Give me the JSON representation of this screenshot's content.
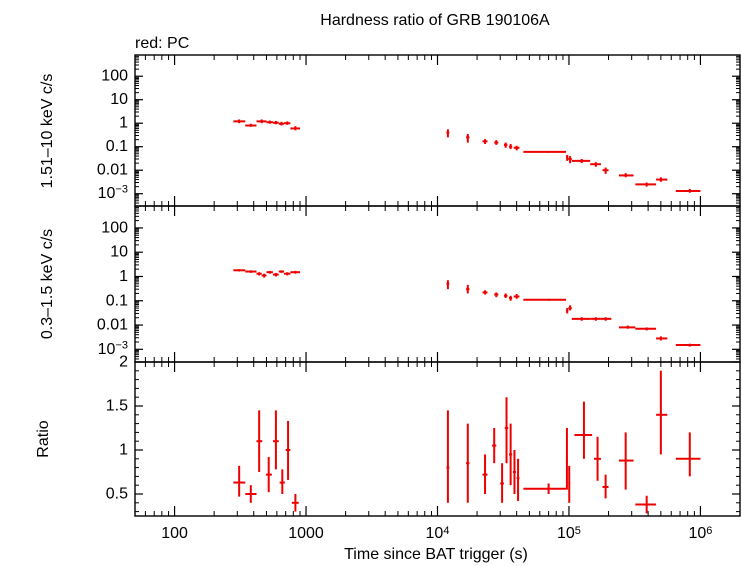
{
  "title": "Hardness ratio of GRB 190106A",
  "subtitle": "red: PC",
  "xlabel": "Time since BAT trigger (s)",
  "colors": {
    "data": "#ee0000",
    "axis": "#000000",
    "background": "#ffffff"
  },
  "chart_data": [
    {
      "type": "scatter",
      "ylabel": "1.51–10 keV c/s",
      "xscale": "log",
      "yscale": "log",
      "xlim": [
        50,
        2000000
      ],
      "ylim": [
        0.0003,
        800
      ],
      "yticks": [
        {
          "v": 100,
          "label": "100"
        },
        {
          "v": 10,
          "label": "10"
        },
        {
          "v": 1,
          "label": "1"
        },
        {
          "v": 0.1,
          "label": "0.1"
        },
        {
          "v": 0.01,
          "label": "0.01"
        },
        {
          "v": 0.001,
          "label": "10",
          "sup": "−3"
        }
      ],
      "series": [
        {
          "points": [
            {
              "x": 310,
              "xlo": 280,
              "xhi": 345,
              "y": 1.2,
              "ylo": 1.0,
              "yhi": 1.45
            },
            {
              "x": 380,
              "xlo": 345,
              "xhi": 420,
              "y": 0.8,
              "ylo": 0.7,
              "yhi": 0.95
            },
            {
              "x": 460,
              "xlo": 420,
              "xhi": 500,
              "y": 1.2,
              "ylo": 1.0,
              "yhi": 1.45
            },
            {
              "x": 530,
              "xlo": 500,
              "xhi": 560,
              "y": 1.1,
              "ylo": 0.95,
              "yhi": 1.3
            },
            {
              "x": 590,
              "xlo": 560,
              "xhi": 620,
              "y": 1.05,
              "ylo": 0.9,
              "yhi": 1.25
            },
            {
              "x": 650,
              "xlo": 620,
              "xhi": 680,
              "y": 0.95,
              "ylo": 0.8,
              "yhi": 1.15
            },
            {
              "x": 720,
              "xlo": 680,
              "xhi": 760,
              "y": 1.0,
              "ylo": 0.85,
              "yhi": 1.2
            },
            {
              "x": 830,
              "xlo": 760,
              "xhi": 900,
              "y": 0.6,
              "ylo": 0.5,
              "yhi": 0.75
            },
            {
              "x": 12000,
              "xlo": 11700,
              "xhi": 12300,
              "y": 0.4,
              "ylo": 0.25,
              "yhi": 0.55
            },
            {
              "x": 17000,
              "xlo": 16500,
              "xhi": 17500,
              "y": 0.25,
              "ylo": 0.15,
              "yhi": 0.35
            },
            {
              "x": 23000,
              "xlo": 22000,
              "xhi": 24000,
              "y": 0.17,
              "ylo": 0.13,
              "yhi": 0.21
            },
            {
              "x": 28000,
              "xlo": 27000,
              "xhi": 29000,
              "y": 0.15,
              "ylo": 0.12,
              "yhi": 0.19
            },
            {
              "x": 33000,
              "xlo": 32000,
              "xhi": 34000,
              "y": 0.12,
              "ylo": 0.09,
              "yhi": 0.15
            },
            {
              "x": 36000,
              "xlo": 35000,
              "xhi": 37000,
              "y": 0.1,
              "ylo": 0.08,
              "yhi": 0.13
            },
            {
              "x": 40000,
              "xlo": 38000,
              "xhi": 42000,
              "y": 0.09,
              "ylo": 0.07,
              "yhi": 0.11
            },
            {
              "x": 70000,
              "xlo": 45000,
              "xhi": 95000,
              "y": 0.06,
              "ylo": 0.055,
              "yhi": 0.065
            },
            {
              "x": 97000,
              "xlo": 95000,
              "xhi": 99000,
              "y": 0.035,
              "ylo": 0.025,
              "yhi": 0.045
            },
            {
              "x": 102000,
              "xlo": 99000,
              "xhi": 105000,
              "y": 0.03,
              "ylo": 0.02,
              "yhi": 0.04
            },
            {
              "x": 125000,
              "xlo": 105000,
              "xhi": 145000,
              "y": 0.025,
              "ylo": 0.02,
              "yhi": 0.03
            },
            {
              "x": 160000,
              "xlo": 145000,
              "xhi": 175000,
              "y": 0.018,
              "ylo": 0.014,
              "yhi": 0.022
            },
            {
              "x": 190000,
              "xlo": 180000,
              "xhi": 200000,
              "y": 0.01,
              "ylo": 0.007,
              "yhi": 0.013
            },
            {
              "x": 270000,
              "xlo": 240000,
              "xhi": 310000,
              "y": 0.006,
              "ylo": 0.005,
              "yhi": 0.0075
            },
            {
              "x": 390000,
              "xlo": 320000,
              "xhi": 460000,
              "y": 0.0025,
              "ylo": 0.002,
              "yhi": 0.003
            },
            {
              "x": 500000,
              "xlo": 460000,
              "xhi": 560000,
              "y": 0.004,
              "ylo": 0.0032,
              "yhi": 0.005
            },
            {
              "x": 830000,
              "xlo": 650000,
              "xhi": 1000000,
              "y": 0.0013,
              "ylo": 0.0011,
              "yhi": 0.0016
            }
          ]
        }
      ]
    },
    {
      "type": "scatter",
      "ylabel": "0.3–1.5 keV c/s",
      "xscale": "log",
      "yscale": "log",
      "xlim": [
        50,
        2000000
      ],
      "ylim": [
        0.0003,
        800
      ],
      "yticks": [
        {
          "v": 100,
          "label": "100"
        },
        {
          "v": 10,
          "label": "10"
        },
        {
          "v": 1,
          "label": "1"
        },
        {
          "v": 0.1,
          "label": "0.1"
        },
        {
          "v": 0.01,
          "label": "0.01"
        },
        {
          "v": 0.001,
          "label": "10",
          "sup": "−3"
        }
      ],
      "series": [
        {
          "points": [
            {
              "x": 310,
              "xlo": 280,
              "xhi": 345,
              "y": 1.8,
              "ylo": 1.6,
              "yhi": 2.0
            },
            {
              "x": 380,
              "xlo": 345,
              "xhi": 420,
              "y": 1.6,
              "ylo": 1.4,
              "yhi": 1.8
            },
            {
              "x": 440,
              "xlo": 420,
              "xhi": 460,
              "y": 1.3,
              "ylo": 1.1,
              "yhi": 1.5
            },
            {
              "x": 480,
              "xlo": 460,
              "xhi": 500,
              "y": 1.1,
              "ylo": 0.9,
              "yhi": 1.3
            },
            {
              "x": 530,
              "xlo": 500,
              "xhi": 560,
              "y": 1.5,
              "ylo": 1.3,
              "yhi": 1.7
            },
            {
              "x": 590,
              "xlo": 560,
              "xhi": 620,
              "y": 1.2,
              "ylo": 1.0,
              "yhi": 1.4
            },
            {
              "x": 650,
              "xlo": 620,
              "xhi": 680,
              "y": 1.6,
              "ylo": 1.4,
              "yhi": 1.8
            },
            {
              "x": 720,
              "xlo": 680,
              "xhi": 760,
              "y": 1.3,
              "ylo": 1.1,
              "yhi": 1.5
            },
            {
              "x": 830,
              "xlo": 760,
              "xhi": 900,
              "y": 1.5,
              "ylo": 1.3,
              "yhi": 1.7
            },
            {
              "x": 12000,
              "xlo": 11700,
              "xhi": 12300,
              "y": 0.5,
              "ylo": 0.3,
              "yhi": 0.7
            },
            {
              "x": 17000,
              "xlo": 16500,
              "xhi": 17500,
              "y": 0.3,
              "ylo": 0.2,
              "yhi": 0.45
            },
            {
              "x": 23000,
              "xlo": 22000,
              "xhi": 24000,
              "y": 0.22,
              "ylo": 0.18,
              "yhi": 0.27
            },
            {
              "x": 28000,
              "xlo": 27000,
              "xhi": 29000,
              "y": 0.18,
              "ylo": 0.14,
              "yhi": 0.22
            },
            {
              "x": 33000,
              "xlo": 32000,
              "xhi": 34000,
              "y": 0.16,
              "ylo": 0.13,
              "yhi": 0.2
            },
            {
              "x": 36000,
              "xlo": 35000,
              "xhi": 37000,
              "y": 0.13,
              "ylo": 0.1,
              "yhi": 0.16
            },
            {
              "x": 40000,
              "xlo": 38000,
              "xhi": 42000,
              "y": 0.15,
              "ylo": 0.12,
              "yhi": 0.19
            },
            {
              "x": 70000,
              "xlo": 45000,
              "xhi": 95000,
              "y": 0.11,
              "ylo": 0.1,
              "yhi": 0.12
            },
            {
              "x": 97000,
              "xlo": 95000,
              "xhi": 99000,
              "y": 0.04,
              "ylo": 0.03,
              "yhi": 0.05
            },
            {
              "x": 102000,
              "xlo": 99000,
              "xhi": 105000,
              "y": 0.05,
              "ylo": 0.04,
              "yhi": 0.065
            },
            {
              "x": 125000,
              "xlo": 105000,
              "xhi": 145000,
              "y": 0.018,
              "ylo": 0.015,
              "yhi": 0.021
            },
            {
              "x": 160000,
              "xlo": 145000,
              "xhi": 175000,
              "y": 0.018,
              "ylo": 0.015,
              "yhi": 0.021
            },
            {
              "x": 190000,
              "xlo": 175000,
              "xhi": 210000,
              "y": 0.018,
              "ylo": 0.015,
              "yhi": 0.021
            },
            {
              "x": 280000,
              "xlo": 240000,
              "xhi": 320000,
              "y": 0.008,
              "ylo": 0.007,
              "yhi": 0.0095
            },
            {
              "x": 390000,
              "xlo": 320000,
              "xhi": 460000,
              "y": 0.007,
              "ylo": 0.006,
              "yhi": 0.008
            },
            {
              "x": 500000,
              "xlo": 460000,
              "xhi": 560000,
              "y": 0.0028,
              "ylo": 0.0023,
              "yhi": 0.0034
            },
            {
              "x": 830000,
              "xlo": 650000,
              "xhi": 1000000,
              "y": 0.0015,
              "ylo": 0.0013,
              "yhi": 0.0017
            }
          ]
        }
      ]
    },
    {
      "type": "scatter",
      "ylabel": "Ratio",
      "xscale": "log",
      "yscale": "linear",
      "xlim": [
        50,
        2000000
      ],
      "ylim": [
        0.25,
        2.0
      ],
      "yticks": [
        {
          "v": 2,
          "label": "2"
        },
        {
          "v": 1.5,
          "label": "1.5"
        },
        {
          "v": 1,
          "label": "1"
        },
        {
          "v": 0.5,
          "label": "0.5"
        }
      ],
      "series": [
        {
          "points": [
            {
              "x": 310,
              "xlo": 280,
              "xhi": 345,
              "y": 0.63,
              "ylo": 0.47,
              "yhi": 0.82
            },
            {
              "x": 380,
              "xlo": 345,
              "xhi": 420,
              "y": 0.5,
              "ylo": 0.4,
              "yhi": 0.6
            },
            {
              "x": 440,
              "xlo": 420,
              "xhi": 465,
              "y": 1.1,
              "ylo": 0.75,
              "yhi": 1.45
            },
            {
              "x": 520,
              "xlo": 495,
              "xhi": 550,
              "y": 0.72,
              "ylo": 0.52,
              "yhi": 0.92
            },
            {
              "x": 590,
              "xlo": 560,
              "xhi": 620,
              "y": 1.1,
              "ylo": 0.78,
              "yhi": 1.45
            },
            {
              "x": 660,
              "xlo": 630,
              "xhi": 690,
              "y": 0.63,
              "ylo": 0.5,
              "yhi": 0.78
            },
            {
              "x": 730,
              "xlo": 700,
              "xhi": 760,
              "y": 1.0,
              "ylo": 0.66,
              "yhi": 1.33
            },
            {
              "x": 830,
              "xlo": 780,
              "xhi": 880,
              "y": 0.4,
              "ylo": 0.3,
              "yhi": 0.5
            },
            {
              "x": 12000,
              "xlo": 11700,
              "xhi": 12300,
              "y": 0.8,
              "ylo": 0.4,
              "yhi": 1.45
            },
            {
              "x": 17000,
              "xlo": 16500,
              "xhi": 17500,
              "y": 0.85,
              "ylo": 0.4,
              "yhi": 1.3
            },
            {
              "x": 23000,
              "xlo": 22000,
              "xhi": 24000,
              "y": 0.72,
              "ylo": 0.5,
              "yhi": 0.95
            },
            {
              "x": 27000,
              "xlo": 26000,
              "xhi": 28000,
              "y": 1.05,
              "ylo": 0.85,
              "yhi": 1.25
            },
            {
              "x": 31000,
              "xlo": 30000,
              "xhi": 32000,
              "y": 0.62,
              "ylo": 0.4,
              "yhi": 0.85
            },
            {
              "x": 33500,
              "xlo": 32500,
              "xhi": 34500,
              "y": 1.25,
              "ylo": 0.85,
              "yhi": 1.6
            },
            {
              "x": 36000,
              "xlo": 35000,
              "xhi": 37000,
              "y": 0.95,
              "ylo": 0.6,
              "yhi": 1.3
            },
            {
              "x": 38500,
              "xlo": 37500,
              "xhi": 39500,
              "y": 0.75,
              "ylo": 0.5,
              "yhi": 1.0
            },
            {
              "x": 41000,
              "xlo": 40000,
              "xhi": 42000,
              "y": 0.68,
              "ylo": 0.42,
              "yhi": 0.9
            },
            {
              "x": 70000,
              "xlo": 45000,
              "xhi": 95000,
              "y": 0.56,
              "ylo": 0.5,
              "yhi": 0.62
            },
            {
              "x": 96500,
              "xlo": 95000,
              "xhi": 98000,
              "y": 0.9,
              "ylo": 0.55,
              "yhi": 1.25
            },
            {
              "x": 100500,
              "xlo": 99000,
              "xhi": 102000,
              "y": 0.62,
              "ylo": 0.4,
              "yhi": 0.82
            },
            {
              "x": 130000,
              "xlo": 110000,
              "xhi": 150000,
              "y": 1.17,
              "ylo": 0.9,
              "yhi": 1.55
            },
            {
              "x": 165000,
              "xlo": 155000,
              "xhi": 175000,
              "y": 0.9,
              "ylo": 0.65,
              "yhi": 1.15
            },
            {
              "x": 190000,
              "xlo": 180000,
              "xhi": 200000,
              "y": 0.58,
              "ylo": 0.45,
              "yhi": 0.72
            },
            {
              "x": 270000,
              "xlo": 240000,
              "xhi": 310000,
              "y": 0.88,
              "ylo": 0.55,
              "yhi": 1.2
            },
            {
              "x": 390000,
              "xlo": 320000,
              "xhi": 460000,
              "y": 0.38,
              "ylo": 0.28,
              "yhi": 0.48
            },
            {
              "x": 500000,
              "xlo": 460000,
              "xhi": 560000,
              "y": 1.4,
              "ylo": 0.95,
              "yhi": 1.9
            },
            {
              "x": 830000,
              "xlo": 650000,
              "xhi": 1000000,
              "y": 0.9,
              "ylo": 0.7,
              "yhi": 1.2
            }
          ]
        }
      ]
    }
  ],
  "xaxis": {
    "ticks": [
      {
        "v": 100,
        "label": "100"
      },
      {
        "v": 1000,
        "label": "1000"
      },
      {
        "v": 10000,
        "label": "10",
        "sup": "4"
      },
      {
        "v": 100000,
        "label": "10",
        "sup": "5"
      },
      {
        "v": 1000000,
        "label": "10",
        "sup": "6"
      }
    ]
  }
}
